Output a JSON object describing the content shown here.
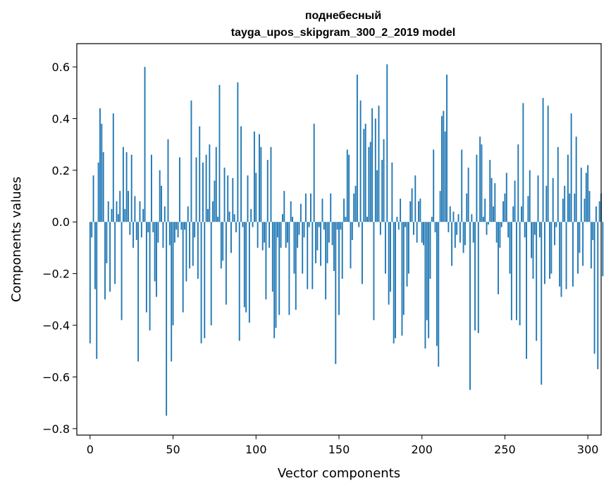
{
  "chart_data": {
    "type": "bar",
    "title": "поднебесный",
    "subtitle": "tayga_upos_skipgram_300_2_2019 model",
    "xlabel": "Vector components",
    "ylabel": "Components values",
    "xlim": [
      -8,
      308
    ],
    "ylim": [
      -0.825,
      0.69
    ],
    "xticks": [
      0,
      50,
      100,
      150,
      200,
      250,
      300
    ],
    "yticks": [
      -0.8,
      -0.6,
      -0.4,
      -0.2,
      0.0,
      0.2,
      0.4,
      0.6
    ],
    "ytick_labels": [
      "−0.8",
      "−0.6",
      "−0.4",
      "−0.2",
      "0.0",
      "0.2",
      "0.4",
      "0.6"
    ],
    "bar_color": "#1f77b4",
    "grid": false,
    "values": [
      -0.47,
      -0.06,
      0.18,
      -0.26,
      -0.53,
      0.23,
      0.44,
      0.38,
      0.27,
      -0.3,
      -0.16,
      0.08,
      -0.27,
      0.05,
      0.42,
      -0.24,
      0.08,
      0.03,
      0.12,
      -0.38,
      0.29,
      0.05,
      0.27,
      0.12,
      -0.05,
      0.26,
      -0.1,
      0.1,
      -0.07,
      -0.54,
      0.08,
      -0.06,
      0.05,
      0.6,
      -0.35,
      -0.04,
      -0.42,
      0.26,
      -0.04,
      -0.23,
      -0.29,
      -0.08,
      0.2,
      0.14,
      -0.1,
      0.06,
      -0.75,
      0.32,
      -0.09,
      -0.54,
      -0.4,
      -0.08,
      -0.03,
      -0.06,
      0.25,
      -0.03,
      -0.35,
      -0.03,
      -0.23,
      0.06,
      -0.18,
      0.47,
      -0.17,
      -0.06,
      0.25,
      -0.22,
      0.37,
      -0.47,
      0.23,
      -0.45,
      0.26,
      0.05,
      0.3,
      -0.4,
      0.08,
      0.16,
      0.29,
      0.02,
      0.53,
      -0.18,
      -0.15,
      0.21,
      -0.32,
      0.18,
      0.04,
      -0.12,
      0.17,
      0.03,
      -0.04,
      0.54,
      -0.46,
      0.37,
      -0.02,
      -0.33,
      -0.35,
      0.18,
      -0.39,
      0.05,
      -0.02,
      0.35,
      0.19,
      -0.1,
      0.34,
      0.29,
      -0.11,
      -0.08,
      -0.3,
      0.24,
      -0.1,
      0.29,
      -0.27,
      -0.45,
      -0.41,
      -0.06,
      -0.36,
      -0.1,
      0.03,
      0.12,
      -0.1,
      -0.08,
      -0.36,
      0.08,
      0.02,
      -0.2,
      -0.34,
      -0.1,
      -0.05,
      0.07,
      -0.2,
      -0.06,
      0.11,
      -0.26,
      -0.02,
      0.11,
      -0.26,
      0.38,
      -0.16,
      -0.11,
      -0.02,
      -0.17,
      0.09,
      -0.03,
      -0.3,
      -0.16,
      -0.08,
      0.11,
      -0.09,
      -0.19,
      -0.55,
      -0.03,
      -0.36,
      -0.03,
      -0.22,
      0.09,
      0.02,
      0.28,
      0.26,
      -0.18,
      -0.07,
      0.11,
      0.14,
      0.57,
      -0.02,
      0.47,
      -0.24,
      0.36,
      0.38,
      0.02,
      0.29,
      0.31,
      0.44,
      -0.38,
      0.4,
      0.2,
      0.45,
      -0.05,
      0.24,
      0.32,
      -0.2,
      0.61,
      -0.32,
      -0.27,
      0.23,
      -0.47,
      -0.45,
      0.02,
      -0.03,
      0.09,
      -0.44,
      -0.36,
      -0.02,
      -0.25,
      -0.2,
      0.08,
      0.13,
      -0.05,
      0.18,
      -0.08,
      0.08,
      0.09,
      -0.08,
      -0.09,
      -0.49,
      -0.38,
      -0.45,
      -0.22,
      0.02,
      0.28,
      -0.04,
      -0.48,
      -0.56,
      0.12,
      0.41,
      0.43,
      0.35,
      0.57,
      -0.04,
      0.06,
      -0.17,
      0.04,
      -0.1,
      -0.05,
      0.03,
      -0.08,
      0.28,
      -0.12,
      -0.09,
      0.11,
      0.21,
      -0.65,
      0.03,
      -0.08,
      -0.42,
      0.26,
      -0.43,
      0.33,
      0.3,
      0.02,
      0.09,
      -0.05,
      -0.01,
      0.24,
      0.17,
      0.06,
      0.15,
      -0.08,
      -0.28,
      -0.1,
      -0.02,
      0.08,
      0.11,
      0.19,
      -0.06,
      -0.2,
      -0.38,
      0.06,
      0.16,
      -0.38,
      0.3,
      -0.4,
      0.06,
      0.46,
      -0.06,
      -0.53,
      0.1,
      0.2,
      -0.14,
      -0.22,
      -0.05,
      -0.46,
      0.18,
      -0.06,
      -0.63,
      0.48,
      -0.24,
      0.14,
      0.45,
      -0.22,
      -0.2,
      0.17,
      -0.09,
      -0.02,
      0.29,
      -0.25,
      -0.29,
      0.09,
      0.14,
      -0.26,
      0.26,
      0.11,
      0.42,
      -0.25,
      0.11,
      0.33,
      -0.2,
      -0.12,
      0.21,
      -0.17,
      0.09,
      0.19,
      0.22,
      0.12,
      -0.18,
      -0.07,
      -0.51,
      0.06,
      -0.57,
      0.08,
      0.11,
      -0.21
    ]
  }
}
